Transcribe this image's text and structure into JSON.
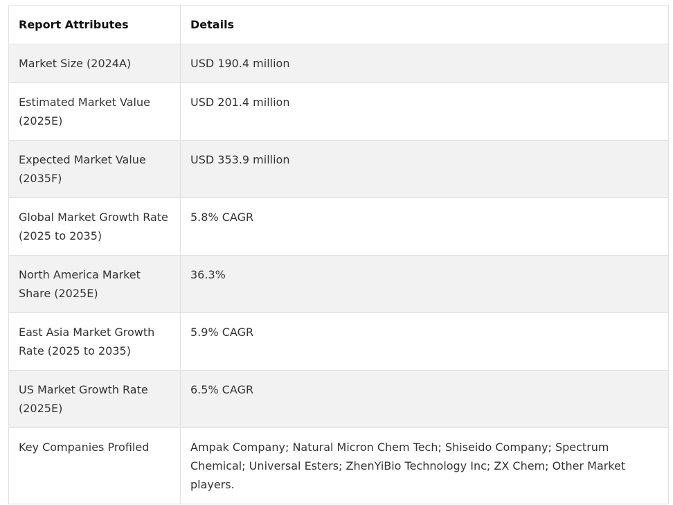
{
  "table": {
    "headers": [
      "Report Attributes",
      "Details"
    ],
    "rows": [
      {
        "attribute": "Market Size (2024A)",
        "detail": "USD 190.4 million"
      },
      {
        "attribute": "Estimated Market Value (2025E)",
        "detail": "USD 201.4 million"
      },
      {
        "attribute": "Expected Market Value (2035F)",
        "detail": "USD 353.9 million"
      },
      {
        "attribute": "Global Market Growth Rate (2025 to 2035)",
        "detail": "5.8% CAGR"
      },
      {
        "attribute": "North America Market Share (2025E)",
        "detail": "36.3%"
      },
      {
        "attribute": "East Asia Market Growth Rate (2025 to 2035)",
        "detail": "5.9% CAGR"
      },
      {
        "attribute": "US Market Growth Rate (2025E)",
        "detail": "6.5% CAGR"
      },
      {
        "attribute": "Key Companies Profiled",
        "detail": "Ampak Company; Natural Micron Chem Tech; Shiseido Company; Spectrum Chemical; Universal Esters; ZhenYiBio Technology Inc; ZX Chem; Other Market players."
      }
    ]
  }
}
